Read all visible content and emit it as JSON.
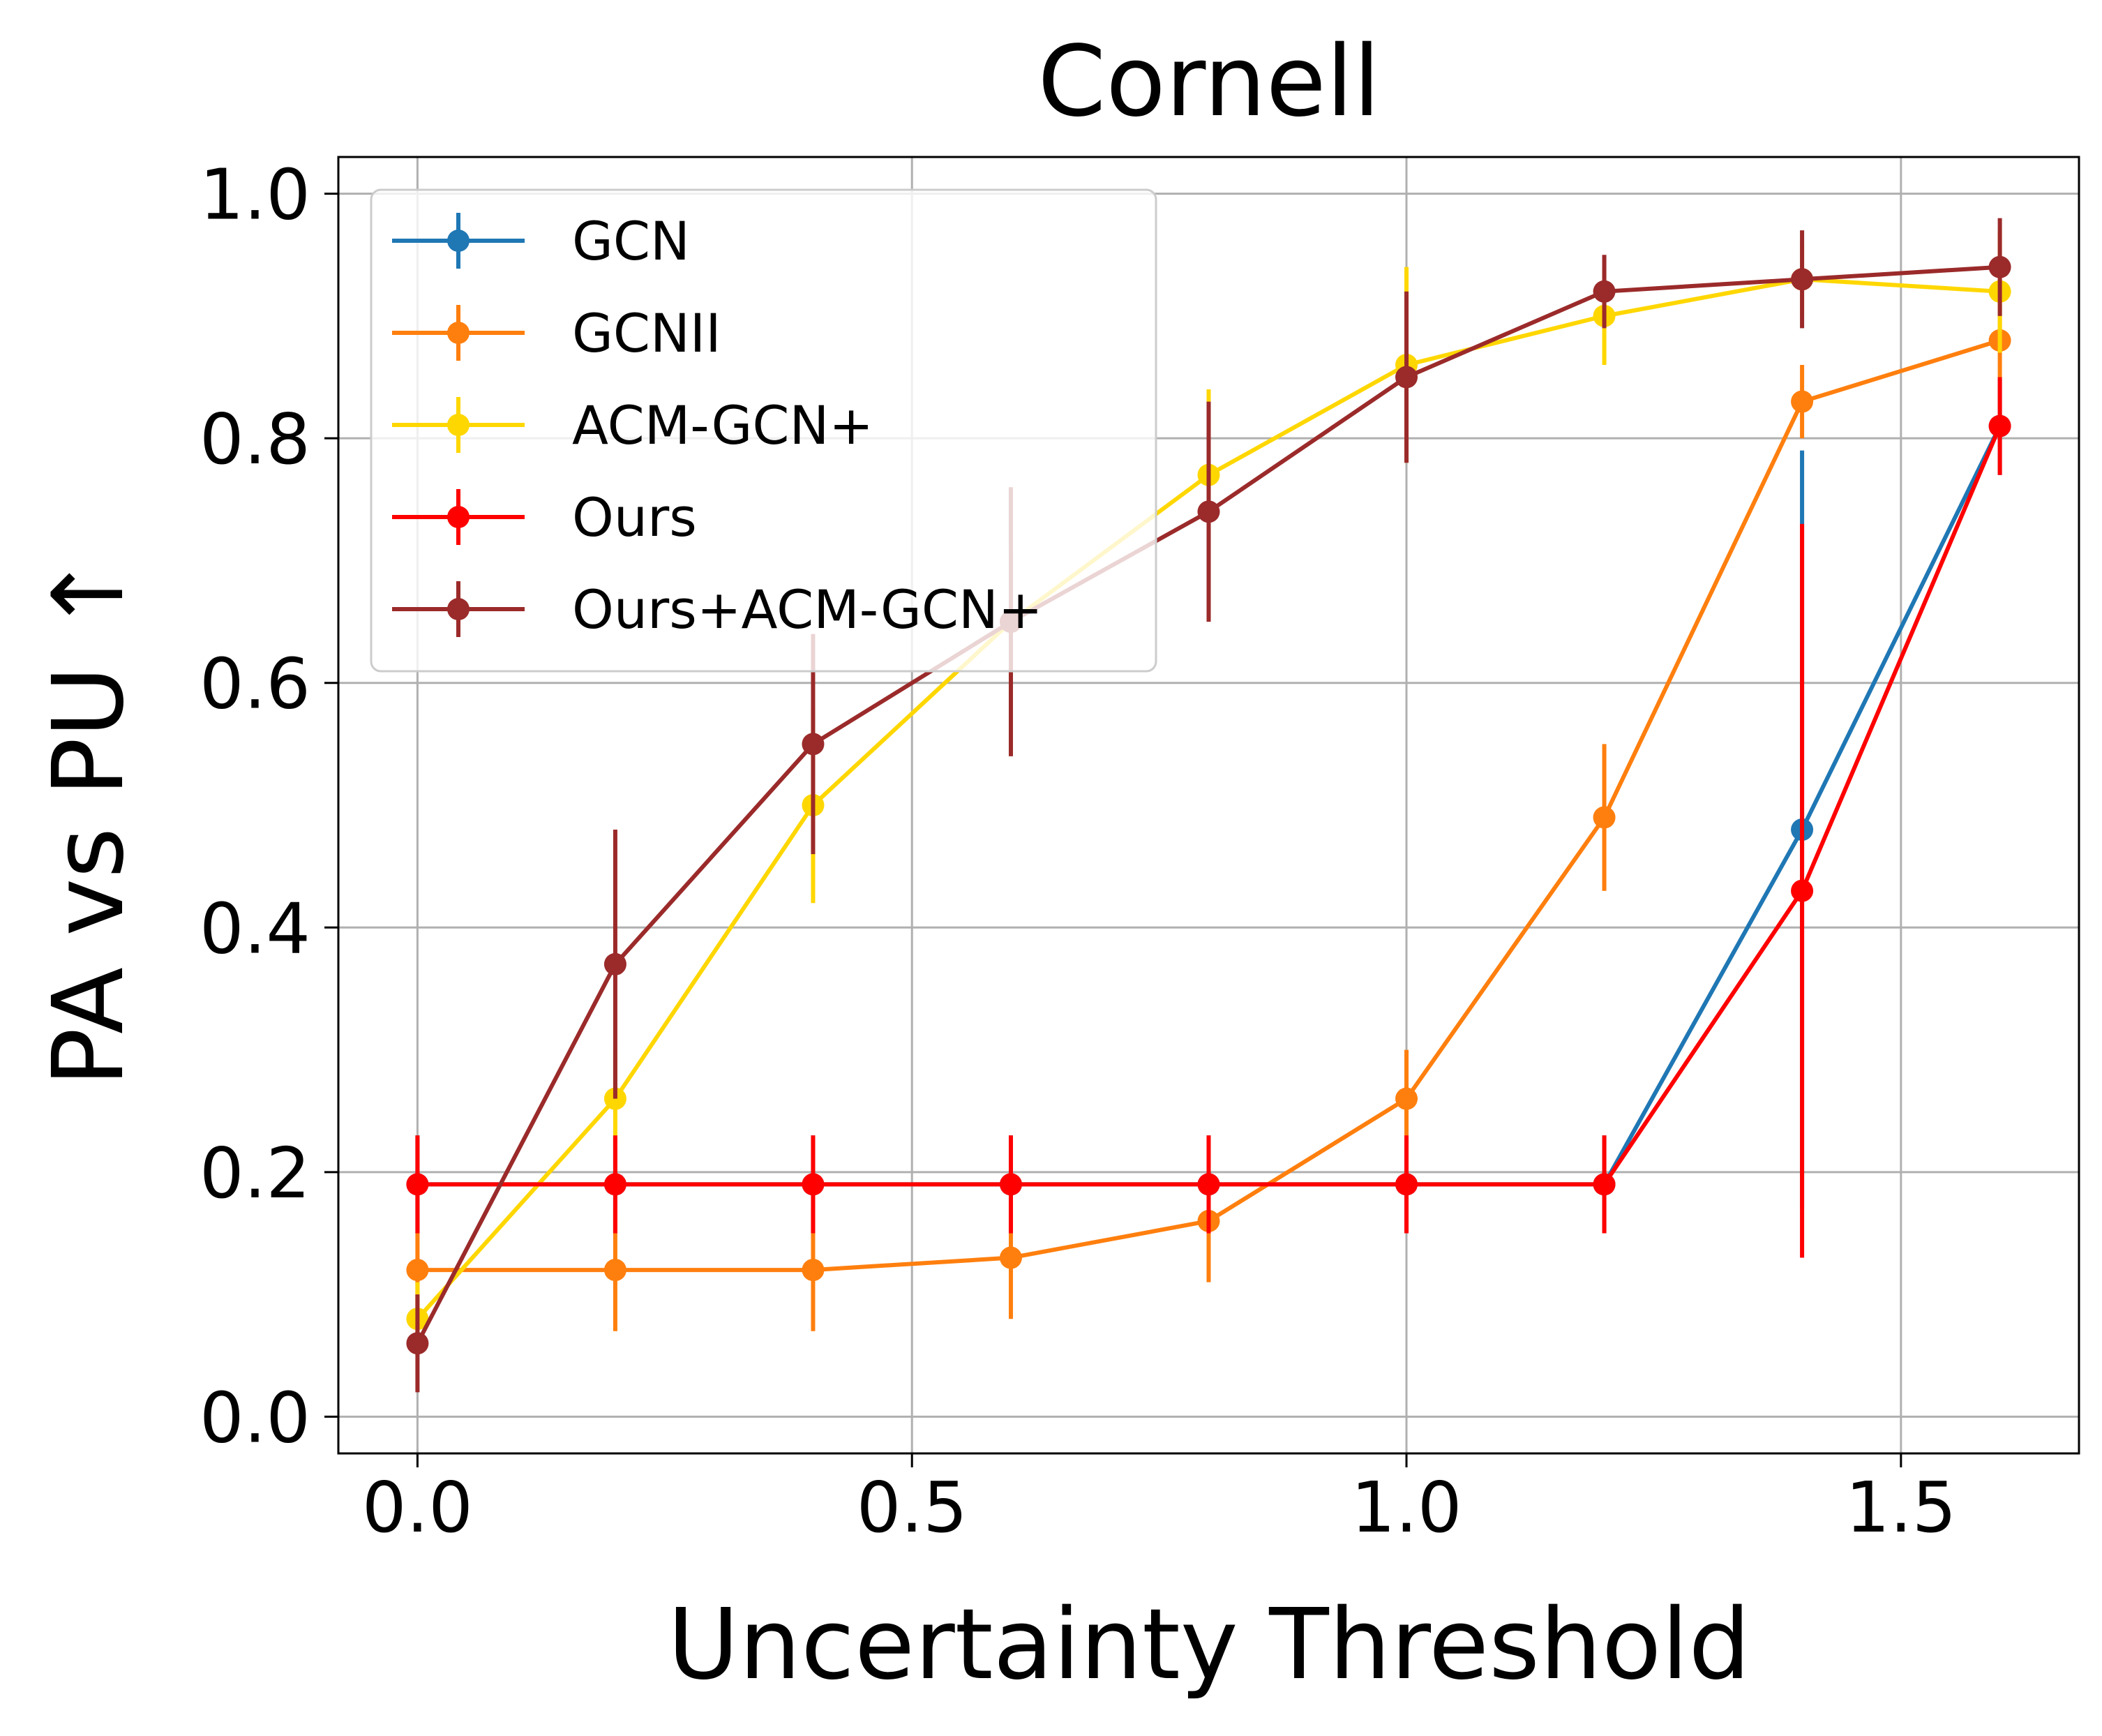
{
  "chart_data": {
    "type": "line",
    "title": "Cornell",
    "xlabel": "Uncertainty Threshold",
    "ylabel": "PA vs PU ↑",
    "xlim": [
      -0.08,
      1.68
    ],
    "ylim": [
      -0.03,
      1.03
    ],
    "xticks": [
      {
        "value": 0.0,
        "label": "0.0"
      },
      {
        "value": 0.5,
        "label": "0.5"
      },
      {
        "value": 1.0,
        "label": "1.0"
      },
      {
        "value": 1.5,
        "label": "1.5"
      }
    ],
    "yticks": [
      {
        "value": 0.0,
        "label": "0.0"
      },
      {
        "value": 0.2,
        "label": "0.2"
      },
      {
        "value": 0.4,
        "label": "0.4"
      },
      {
        "value": 0.6,
        "label": "0.6"
      },
      {
        "value": 0.8,
        "label": "0.8"
      },
      {
        "value": 1.0,
        "label": "1.0"
      }
    ],
    "grid": true,
    "legend_position": "top-left",
    "x": [
      0.0,
      0.2,
      0.4,
      0.6,
      0.8,
      1.0,
      1.2,
      1.4,
      1.6
    ],
    "series": [
      {
        "name": "GCN",
        "color": "#1f77b4",
        "values": [
          0.19,
          0.19,
          0.19,
          0.19,
          0.19,
          0.19,
          0.19,
          0.48,
          0.81
        ],
        "errors": [
          0.04,
          0.04,
          0.04,
          0.04,
          0.04,
          0.04,
          0.04,
          0.31,
          0.04
        ]
      },
      {
        "name": "GCNII",
        "color": "#ff7f0e",
        "values": [
          0.12,
          0.12,
          0.12,
          0.13,
          0.16,
          0.26,
          0.49,
          0.83,
          0.88
        ],
        "errors": [
          0.03,
          0.05,
          0.05,
          0.05,
          0.05,
          0.04,
          0.06,
          0.03,
          0.03
        ]
      },
      {
        "name": "ACM-GCN+",
        "color": "#ffd700",
        "values": [
          0.08,
          0.26,
          0.5,
          0.65,
          0.77,
          0.86,
          0.9,
          0.93,
          0.92
        ],
        "errors": [
          0.03,
          0.04,
          0.08,
          0.06,
          0.07,
          0.08,
          0.04,
          0.03,
          0.05
        ]
      },
      {
        "name": "Ours",
        "color": "#ff0000",
        "values": [
          0.19,
          0.19,
          0.19,
          0.19,
          0.19,
          0.19,
          0.19,
          0.43,
          0.81
        ],
        "errors": [
          0.04,
          0.04,
          0.04,
          0.04,
          0.04,
          0.04,
          0.04,
          0.3,
          0.04
        ]
      },
      {
        "name": "Ours+ACM-GCN+",
        "color": "#9b2a2a",
        "values": [
          0.06,
          0.37,
          0.55,
          0.65,
          0.74,
          0.85,
          0.92,
          0.93,
          0.94
        ],
        "errors": [
          0.04,
          0.11,
          0.09,
          0.11,
          0.09,
          0.07,
          0.03,
          0.04,
          0.04
        ]
      }
    ]
  }
}
